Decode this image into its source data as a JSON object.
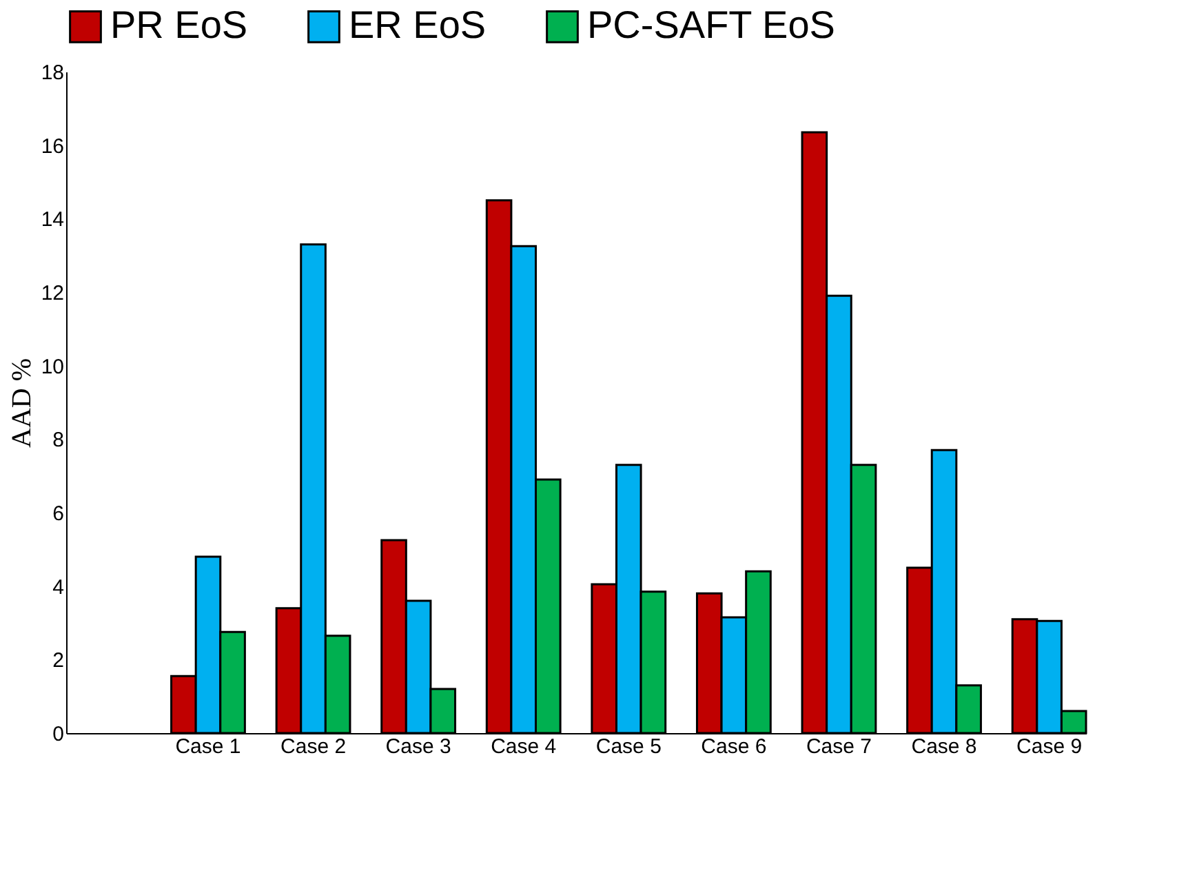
{
  "chart_data": {
    "type": "bar",
    "ylabel": "AAD %",
    "categories": [
      null,
      "Case 1",
      "Case 2",
      "Case 3",
      "Case 4",
      "Case 5",
      "Case 6",
      "Case 7",
      "Case 8",
      "Case 9"
    ],
    "series": [
      {
        "name": "PR EoS",
        "color": "#c00000",
        "values": [
          null,
          1.55,
          3.4,
          5.25,
          14.5,
          4.05,
          3.8,
          16.35,
          4.5,
          3.1
        ]
      },
      {
        "name": "ER EoS",
        "color": "#00b0f0",
        "values": [
          null,
          4.8,
          13.3,
          3.6,
          13.25,
          7.3,
          3.15,
          11.9,
          7.7,
          3.05
        ]
      },
      {
        "name": "PC-SAFT EoS",
        "color": "#00b050",
        "values": [
          null,
          2.75,
          2.65,
          1.2,
          6.9,
          3.85,
          4.4,
          7.3,
          1.3,
          0.6
        ]
      }
    ],
    "ylim": [
      0,
      18
    ],
    "yticks": [
      0,
      2,
      4,
      6,
      8,
      10,
      12,
      14,
      16,
      18
    ],
    "grid": false,
    "legend": "top"
  }
}
